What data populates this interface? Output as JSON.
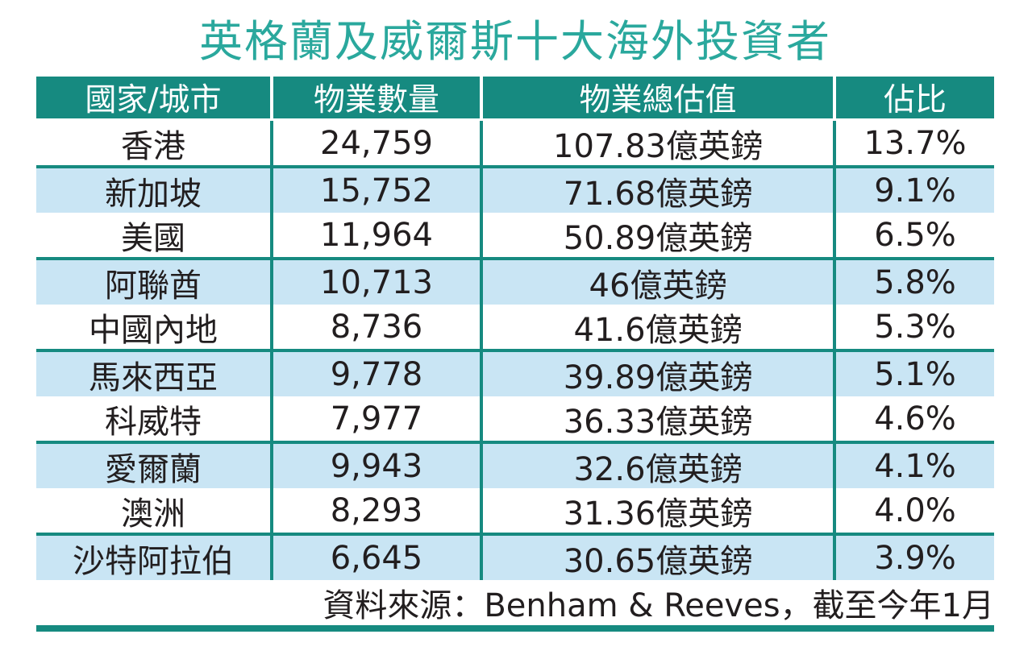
{
  "title": "英格蘭及威爾斯十大海外投資者",
  "colors": {
    "teal_accent": "#168a80",
    "title_teal": "#2aa89d",
    "stripe_blue": "#c9e5f4",
    "header_text": "#ffffff",
    "body_text": "#221e1f",
    "background": "#ffffff"
  },
  "table": {
    "headers": [
      "國家/城市",
      "物業數量",
      "物業總估值",
      "佔比"
    ],
    "rows": [
      [
        "香港",
        "24,759",
        "107.83億英鎊",
        "13.7%"
      ],
      [
        "新加坡",
        "15,752",
        "71.68億英鎊",
        "9.1%"
      ],
      [
        "美國",
        "11,964",
        "50.89億英鎊",
        "6.5%"
      ],
      [
        "阿聯酋",
        "10,713",
        "46億英鎊",
        "5.8%"
      ],
      [
        "中國內地",
        "8,736",
        "41.6億英鎊",
        "5.3%"
      ],
      [
        "馬來西亞",
        "9,778",
        "39.89億英鎊",
        "5.1%"
      ],
      [
        "科威特",
        "7,977",
        "36.33億英鎊",
        "4.6%"
      ],
      [
        "愛爾蘭",
        "9,943",
        "32.6億英鎊",
        "4.1%"
      ],
      [
        "澳洲",
        "8,293",
        "31.36億英鎊",
        "4.0%"
      ],
      [
        "沙特阿拉伯",
        "6,645",
        "30.65億英鎊",
        "3.9%"
      ]
    ]
  },
  "footer": {
    "source": "資料來源：Benham & Reeves，截至今年1月"
  },
  "chart_data": {
    "type": "table",
    "title": "英格蘭及威爾斯十大海外投資者",
    "columns": [
      "國家/城市",
      "物業數量",
      "物業總估值",
      "佔比"
    ],
    "rows": [
      {
        "country": "香港",
        "property_count": 24759,
        "total_value": "107.83億英鎊",
        "share_pct": 13.7
      },
      {
        "country": "新加坡",
        "property_count": 15752,
        "total_value": "71.68億英鎊",
        "share_pct": 9.1
      },
      {
        "country": "美國",
        "property_count": 11964,
        "total_value": "50.89億英鎊",
        "share_pct": 6.5
      },
      {
        "country": "阿聯酋",
        "property_count": 10713,
        "total_value": "46億英鎊",
        "share_pct": 5.8
      },
      {
        "country": "中國內地",
        "property_count": 8736,
        "total_value": "41.6億英鎊",
        "share_pct": 5.3
      },
      {
        "country": "馬來西亞",
        "property_count": 9778,
        "total_value": "39.89億英鎊",
        "share_pct": 5.1
      },
      {
        "country": "科威特",
        "property_count": 7977,
        "total_value": "36.33億英鎊",
        "share_pct": 4.6
      },
      {
        "country": "愛爾蘭",
        "property_count": 9943,
        "total_value": "32.6億英鎊",
        "share_pct": 4.1
      },
      {
        "country": "澳洲",
        "property_count": 8293,
        "total_value": "31.36億英鎊",
        "share_pct": 4.0
      },
      {
        "country": "沙特阿拉伯",
        "property_count": 6645,
        "total_value": "30.65億英鎊",
        "share_pct": 3.9
      }
    ],
    "source": "資料來源：Benham & Reeves，截至今年1月"
  }
}
